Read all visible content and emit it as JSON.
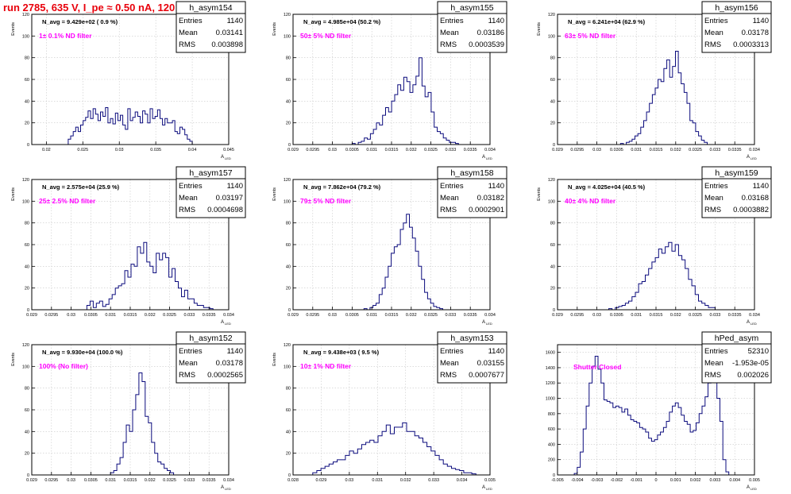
{
  "page": {
    "title": "run 2785,   635 V, I_pe ≈ 0.50 nA, 120 Hz"
  },
  "colors": {
    "histogram": "#0b0b7d",
    "title": "#e8000b",
    "annotation": "#ff00ff",
    "grid": "#c8c8c8",
    "frame": "#000000"
  },
  "chart_data": [
    {
      "type": "bar",
      "name": "h_asym154",
      "stats": {
        "entries": "1140",
        "mean": "0.03141",
        "rms": "0.003898"
      },
      "navg": "N_avg = 9.429e+02 ( 0.9 %)",
      "label": "1± 0.1% ND filter",
      "ylabel": "Events",
      "xlabel": "A",
      "xlabel_sub": "LED",
      "xlim": [
        0.018,
        0.045
      ],
      "ylim": [
        0,
        120
      ],
      "xticks": [
        "0.02",
        "0.025",
        "0.03",
        "0.035",
        "0.04",
        "0.045"
      ],
      "xtick_values": [
        0.02,
        0.025,
        0.03,
        0.035,
        0.04,
        0.045
      ],
      "yticks": [
        0,
        20,
        40,
        60,
        80,
        100,
        120
      ],
      "bin_edges": [
        0.023,
        0.04
      ],
      "values": [
        5,
        8,
        12,
        16,
        12,
        18,
        22,
        25,
        31,
        24,
        33,
        28,
        22,
        30,
        26,
        34,
        20,
        24,
        19,
        29,
        22,
        27,
        18,
        14,
        33,
        22,
        25,
        30,
        26,
        20,
        31,
        28,
        20,
        33,
        24,
        26,
        32,
        24,
        18,
        24,
        20,
        20,
        22,
        12,
        10,
        16,
        14,
        9,
        5,
        3
      ]
    },
    {
      "type": "bar",
      "name": "h_asym155",
      "stats": {
        "entries": "1140",
        "mean": "0.03186",
        "rms": "0.0003539"
      },
      "navg": "N_avg = 4.985e+04 (50.2 %)",
      "label": "50± 5% ND filter",
      "ylabel": "Events",
      "xlabel": "A",
      "xlabel_sub": "LED",
      "xlim": [
        0.029,
        0.034
      ],
      "ylim": [
        0,
        120
      ],
      "xticks": [
        "0.029",
        "0.0295",
        "0.03",
        "0.0305",
        "0.031",
        "0.0315",
        "0.032",
        "0.0325",
        "0.033",
        "0.0335",
        "0.034"
      ],
      "xtick_values": [
        0.029,
        0.0295,
        0.03,
        0.0305,
        0.031,
        0.0315,
        0.032,
        0.0325,
        0.033,
        0.0335,
        0.034
      ],
      "yticks": [
        0,
        20,
        40,
        60,
        80,
        100,
        120
      ],
      "bin_edges": [
        0.0305,
        0.0332
      ],
      "values": [
        1,
        0,
        2,
        3,
        6,
        5,
        10,
        14,
        20,
        18,
        27,
        34,
        30,
        40,
        46,
        55,
        50,
        62,
        58,
        48,
        55,
        63,
        80,
        54,
        44,
        48,
        30,
        16,
        12,
        10,
        6,
        4,
        2,
        2,
        1
      ]
    },
    {
      "type": "bar",
      "name": "h_asym156",
      "stats": {
        "entries": "1140",
        "mean": "0.03178",
        "rms": "0.0003313"
      },
      "navg": "N_avg = 6.241e+04 (62.9 %)",
      "label": "63± 5% ND filter",
      "ylabel": "Events",
      "xlabel": "A",
      "xlabel_sub": "LED",
      "xlim": [
        0.029,
        0.034
      ],
      "ylim": [
        0,
        120
      ],
      "xticks": [
        "0.029",
        "0.0295",
        "0.03",
        "0.0305",
        "0.031",
        "0.0315",
        "0.032",
        "0.0325",
        "0.033",
        "0.0335",
        "0.034"
      ],
      "xtick_values": [
        0.029,
        0.0295,
        0.03,
        0.0305,
        0.031,
        0.0315,
        0.032,
        0.0325,
        0.033,
        0.0335,
        0.034
      ],
      "yticks": [
        0,
        20,
        40,
        60,
        80,
        100,
        120
      ],
      "bin_edges": [
        0.0306,
        0.0328
      ],
      "values": [
        1,
        0,
        2,
        3,
        5,
        8,
        10,
        16,
        22,
        30,
        38,
        46,
        52,
        60,
        58,
        70,
        78,
        62,
        72,
        86,
        66,
        56,
        48,
        38,
        22,
        20,
        12,
        8,
        4,
        2
      ]
    },
    {
      "type": "bar",
      "name": "h_asym157",
      "stats": {
        "entries": "1140",
        "mean": "0.03197",
        "rms": "0.0004698"
      },
      "navg": "N_avg = 2.575e+04 (25.9 %)",
      "label": "25± 2.5% ND filter",
      "ylabel": "Events",
      "xlabel": "A",
      "xlabel_sub": "LED",
      "xlim": [
        0.029,
        0.034
      ],
      "ylim": [
        0,
        120
      ],
      "xticks": [
        "0.029",
        "0.0295",
        "0.03",
        "0.0305",
        "0.031",
        "0.0315",
        "0.032",
        "0.0325",
        "0.033",
        "0.0335",
        "0.034"
      ],
      "xtick_values": [
        0.029,
        0.0295,
        0.03,
        0.0305,
        0.031,
        0.0315,
        0.032,
        0.0325,
        0.033,
        0.0335,
        0.034
      ],
      "yticks": [
        0,
        20,
        40,
        60,
        80,
        100,
        120
      ],
      "bin_edges": [
        0.0304,
        0.0336
      ],
      "values": [
        4,
        8,
        2,
        6,
        8,
        3,
        5,
        10,
        14,
        20,
        22,
        24,
        36,
        30,
        42,
        40,
        58,
        52,
        62,
        44,
        40,
        34,
        52,
        46,
        52,
        48,
        30,
        38,
        26,
        20,
        12,
        18,
        10,
        10,
        6,
        4,
        4,
        2,
        2,
        1
      ]
    },
    {
      "type": "bar",
      "name": "h_asym158",
      "stats": {
        "entries": "1140",
        "mean": "0.03182",
        "rms": "0.0002901"
      },
      "navg": "N_avg = 7.862e+04 (79.2 %)",
      "label": "79± 5% ND filter",
      "ylabel": "Events",
      "xlabel": "A",
      "xlabel_sub": "LED",
      "xlim": [
        0.029,
        0.034
      ],
      "ylim": [
        0,
        120
      ],
      "xticks": [
        "0.029",
        "0.0295",
        "0.03",
        "0.0305",
        "0.031",
        "0.0315",
        "0.032",
        "0.0325",
        "0.033",
        "0.0335",
        "0.034"
      ],
      "xtick_values": [
        0.029,
        0.0295,
        0.03,
        0.0305,
        0.031,
        0.0315,
        0.032,
        0.0325,
        0.033,
        0.0335,
        0.034
      ],
      "yticks": [
        0,
        20,
        40,
        60,
        80,
        100,
        120
      ],
      "bin_edges": [
        0.0308,
        0.0328
      ],
      "values": [
        1,
        0,
        2,
        4,
        6,
        14,
        20,
        30,
        40,
        52,
        58,
        60,
        74,
        80,
        88,
        76,
        66,
        54,
        40,
        28,
        16,
        10,
        6,
        3,
        2,
        1
      ]
    },
    {
      "type": "bar",
      "name": "h_asym159",
      "stats": {
        "entries": "1140",
        "mean": "0.03168",
        "rms": "0.0003882"
      },
      "navg": "N_avg = 4.025e+04 (40.5 %)",
      "label": "40± 4% ND filter",
      "ylabel": "Events",
      "xlabel": "A",
      "xlabel_sub": "LED",
      "xlim": [
        0.029,
        0.034
      ],
      "ylim": [
        0,
        120
      ],
      "xticks": [
        "0.029",
        "0.0295",
        "0.03",
        "0.0305",
        "0.031",
        "0.0315",
        "0.032",
        "0.0325",
        "0.033",
        "0.0335",
        "0.034"
      ],
      "xtick_values": [
        0.029,
        0.0295,
        0.03,
        0.0305,
        0.031,
        0.0315,
        0.032,
        0.0325,
        0.033,
        0.0335,
        0.034
      ],
      "yticks": [
        0,
        20,
        40,
        60,
        80,
        100,
        120
      ],
      "bin_edges": [
        0.0303,
        0.033
      ],
      "values": [
        1,
        0,
        2,
        3,
        4,
        6,
        8,
        12,
        16,
        24,
        26,
        32,
        38,
        44,
        48,
        56,
        52,
        58,
        62,
        54,
        60,
        50,
        46,
        38,
        28,
        22,
        14,
        8,
        6,
        4,
        2,
        2
      ]
    },
    {
      "type": "bar",
      "name": "h_asym152",
      "stats": {
        "entries": "1140",
        "mean": "0.03178",
        "rms": "0.0002565"
      },
      "navg": "N_avg = 9.930e+04 (100.0 %)",
      "label": "100% (No filter)",
      "ylabel": "Events",
      "xlabel": "A",
      "xlabel_sub": "LED",
      "xlim": [
        0.029,
        0.034
      ],
      "ylim": [
        0,
        120
      ],
      "xticks": [
        "0.029",
        "0.0295",
        "0.03",
        "0.0305",
        "0.031",
        "0.0315",
        "0.032",
        "0.0325",
        "0.033",
        "0.0335",
        "0.034"
      ],
      "xtick_values": [
        0.029,
        0.0295,
        0.03,
        0.0305,
        0.031,
        0.0315,
        0.032,
        0.0325,
        0.033,
        0.0335,
        0.034
      ],
      "yticks": [
        0,
        20,
        40,
        60,
        80,
        100,
        120
      ],
      "bin_edges": [
        0.031,
        0.0326
      ],
      "values": [
        2,
        4,
        10,
        16,
        30,
        46,
        40,
        60,
        74,
        94,
        86,
        54,
        48,
        30,
        20,
        12,
        10,
        6,
        4,
        2
      ]
    },
    {
      "type": "bar",
      "name": "h_asym153",
      "stats": {
        "entries": "1140",
        "mean": "0.03155",
        "rms": "0.0007677"
      },
      "navg": "N_avg = 9.438e+03 ( 9.5 %)",
      "label": "10± 1% ND filter",
      "ylabel": "Events",
      "xlabel": "A",
      "xlabel_sub": "LED",
      "xlim": [
        0.028,
        0.035
      ],
      "ylim": [
        0,
        120
      ],
      "xticks": [
        "0.028",
        "0.029",
        "0.03",
        "0.031",
        "0.032",
        "0.033",
        "0.034",
        "0.035"
      ],
      "xtick_values": [
        0.028,
        0.029,
        0.03,
        0.031,
        0.032,
        0.033,
        0.034,
        0.035
      ],
      "yticks": [
        0,
        20,
        40,
        60,
        80,
        100,
        120
      ],
      "bin_edges": [
        0.0287,
        0.0345
      ],
      "values": [
        2,
        4,
        6,
        8,
        10,
        12,
        14,
        14,
        18,
        22,
        20,
        24,
        28,
        30,
        32,
        30,
        36,
        40,
        46,
        38,
        44,
        44,
        48,
        40,
        40,
        36,
        34,
        30,
        26,
        22,
        18,
        14,
        10,
        8,
        6,
        5,
        4,
        2,
        2,
        1
      ]
    },
    {
      "type": "bar",
      "name": "hPed_asym",
      "stats": {
        "entries": "52310",
        "mean": "-1.953e-05",
        "rms": "0.002026"
      },
      "label": "Shutter Closed",
      "ylabel": "",
      "xlabel": "A",
      "xlabel_sub": "LED",
      "xlim": [
        -0.005,
        0.005
      ],
      "ylim": [
        0,
        1700
      ],
      "xticks": [
        "-0.005",
        "-0.004",
        "-0.003",
        "-0.002",
        "-0.001",
        "0",
        "0.001",
        "0.002",
        "0.003",
        "0.004",
        "0.005"
      ],
      "xtick_values": [
        -0.005,
        -0.004,
        -0.003,
        -0.002,
        -0.001,
        0,
        0.001,
        0.002,
        0.003,
        0.004,
        0.005
      ],
      "yticks": [
        0,
        200,
        400,
        600,
        800,
        1000,
        1200,
        1400,
        1600
      ],
      "bin_edges": [
        -0.0043,
        0.004
      ],
      "values": [
        0,
        20,
        100,
        300,
        600,
        900,
        1200,
        1420,
        1550,
        1380,
        1200,
        980,
        960,
        940,
        880,
        900,
        880,
        820,
        860,
        780,
        720,
        700,
        680,
        620,
        600,
        560,
        480,
        440,
        460,
        520,
        560,
        620,
        700,
        820,
        900,
        940,
        880,
        780,
        700,
        660,
        560,
        580,
        680,
        800,
        900,
        1020,
        1200,
        1520,
        1300,
        1000,
        700,
        200,
        40,
        0,
        0
      ]
    }
  ]
}
